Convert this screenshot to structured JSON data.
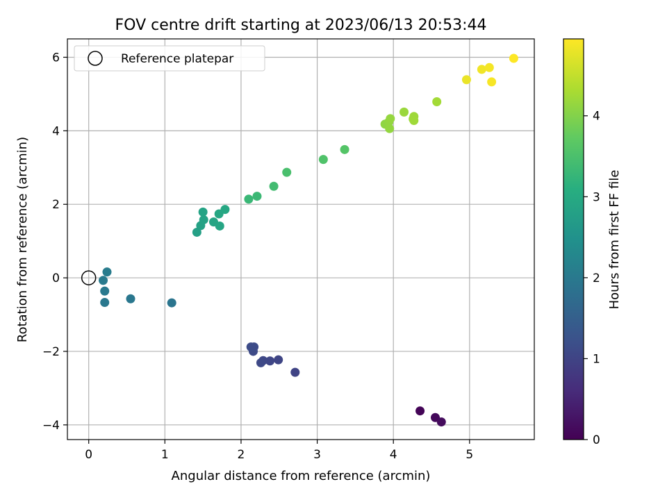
{
  "chart_data": {
    "type": "scatter",
    "title": "FOV centre drift starting at 2023/06/13 20:53:44",
    "xlabel": "Angular distance from reference (arcmin)",
    "ylabel": "Rotation from reference (arcmin)",
    "xlim": [
      -0.28,
      5.85
    ],
    "ylim": [
      -4.4,
      6.5
    ],
    "xticks": [
      0,
      1,
      2,
      3,
      4,
      5
    ],
    "xtick_labels": [
      "0",
      "1",
      "2",
      "3",
      "4",
      "5"
    ],
    "yticks": [
      -4,
      -2,
      0,
      2,
      4,
      6
    ],
    "ytick_labels": [
      "−4",
      "−2",
      "0",
      "2",
      "4",
      "6"
    ],
    "grid": true,
    "legend": {
      "placement": "upper-left",
      "entries": [
        {
          "label": "Reference platepar",
          "marker": "open-circle"
        }
      ]
    },
    "reference_point": {
      "x": 0,
      "y": 0
    },
    "colorbar": {
      "label": "Hours from first FF file",
      "min": 0,
      "max": 4.95,
      "ticks": [
        0,
        1,
        2,
        3,
        4
      ],
      "tick_labels": [
        "0",
        "1",
        "2",
        "3",
        "4"
      ],
      "colormap": "viridis"
    },
    "points": [
      {
        "x": 4.35,
        "y": -3.62,
        "c": 0.05
      },
      {
        "x": 4.55,
        "y": -3.8,
        "c": 0.1
      },
      {
        "x": 4.63,
        "y": -3.92,
        "c": 0.15
      },
      {
        "x": 2.71,
        "y": -2.57,
        "c": 1.0
      },
      {
        "x": 2.49,
        "y": -2.23,
        "c": 1.02
      },
      {
        "x": 2.38,
        "y": -2.26,
        "c": 1.04
      },
      {
        "x": 2.29,
        "y": -2.25,
        "c": 1.06
      },
      {
        "x": 2.26,
        "y": -2.31,
        "c": 1.08
      },
      {
        "x": 2.16,
        "y": -2.0,
        "c": 1.1
      },
      {
        "x": 2.17,
        "y": -1.88,
        "c": 1.12
      },
      {
        "x": 2.13,
        "y": -1.88,
        "c": 1.14
      },
      {
        "x": 1.09,
        "y": -0.68,
        "c": 1.92
      },
      {
        "x": 0.55,
        "y": -0.57,
        "c": 1.95
      },
      {
        "x": 0.21,
        "y": -0.67,
        "c": 1.98
      },
      {
        "x": 0.21,
        "y": -0.36,
        "c": 2.0
      },
      {
        "x": 0.19,
        "y": -0.07,
        "c": 2.02
      },
      {
        "x": 0.24,
        "y": 0.16,
        "c": 2.05
      },
      {
        "x": 1.42,
        "y": 1.24,
        "c": 2.8
      },
      {
        "x": 1.47,
        "y": 1.42,
        "c": 2.82
      },
      {
        "x": 1.51,
        "y": 1.58,
        "c": 2.84
      },
      {
        "x": 1.5,
        "y": 1.79,
        "c": 2.86
      },
      {
        "x": 1.64,
        "y": 1.52,
        "c": 2.88
      },
      {
        "x": 1.72,
        "y": 1.41,
        "c": 2.9
      },
      {
        "x": 1.71,
        "y": 1.74,
        "c": 2.92
      },
      {
        "x": 1.79,
        "y": 1.86,
        "c": 2.94
      },
      {
        "x": 2.1,
        "y": 2.14,
        "c": 3.3
      },
      {
        "x": 2.21,
        "y": 2.22,
        "c": 3.32
      },
      {
        "x": 2.43,
        "y": 2.49,
        "c": 3.4
      },
      {
        "x": 2.6,
        "y": 2.87,
        "c": 3.48
      },
      {
        "x": 3.08,
        "y": 3.22,
        "c": 3.55
      },
      {
        "x": 3.36,
        "y": 3.49,
        "c": 3.6
      },
      {
        "x": 3.89,
        "y": 4.18,
        "c": 4.1
      },
      {
        "x": 3.94,
        "y": 4.24,
        "c": 4.12
      },
      {
        "x": 3.95,
        "y": 4.06,
        "c": 4.13
      },
      {
        "x": 3.96,
        "y": 4.33,
        "c": 4.14
      },
      {
        "x": 4.14,
        "y": 4.51,
        "c": 4.18
      },
      {
        "x": 4.26,
        "y": 4.32,
        "c": 4.2
      },
      {
        "x": 4.27,
        "y": 4.39,
        "c": 4.21
      },
      {
        "x": 4.27,
        "y": 4.28,
        "c": 4.22
      },
      {
        "x": 4.57,
        "y": 4.79,
        "c": 4.25
      },
      {
        "x": 4.96,
        "y": 5.39,
        "c": 4.8
      },
      {
        "x": 5.16,
        "y": 5.67,
        "c": 4.85
      },
      {
        "x": 5.26,
        "y": 5.72,
        "c": 4.88
      },
      {
        "x": 5.29,
        "y": 5.33,
        "c": 4.9
      },
      {
        "x": 5.58,
        "y": 5.97,
        "c": 4.95
      }
    ]
  }
}
